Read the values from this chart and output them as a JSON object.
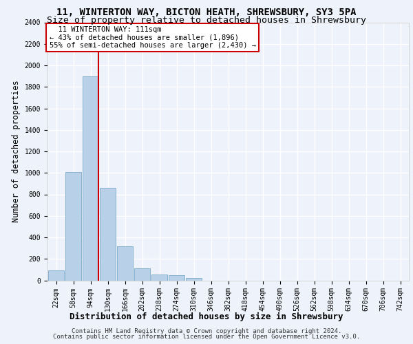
{
  "title": "11, WINTERTON WAY, BICTON HEATH, SHREWSBURY, SY3 5PA",
  "subtitle": "Size of property relative to detached houses in Shrewsbury",
  "xlabel": "Distribution of detached houses by size in Shrewsbury",
  "ylabel": "Number of detached properties",
  "bar_color": "#b8d0e8",
  "bar_edge_color": "#7aaaca",
  "background_color": "#eef2fa",
  "grid_color": "#ffffff",
  "bin_labels": [
    "22sqm",
    "58sqm",
    "94sqm",
    "130sqm",
    "166sqm",
    "202sqm",
    "238sqm",
    "274sqm",
    "310sqm",
    "346sqm",
    "382sqm",
    "418sqm",
    "454sqm",
    "490sqm",
    "526sqm",
    "562sqm",
    "598sqm",
    "634sqm",
    "670sqm",
    "706sqm",
    "742sqm"
  ],
  "bar_values": [
    95,
    1010,
    1900,
    860,
    315,
    115,
    55,
    48,
    25,
    0,
    0,
    0,
    0,
    0,
    0,
    0,
    0,
    0,
    0,
    0,
    0
  ],
  "ylim": [
    0,
    2400
  ],
  "yticks": [
    0,
    200,
    400,
    600,
    800,
    1000,
    1200,
    1400,
    1600,
    1800,
    2000,
    2200,
    2400
  ],
  "vline_x_index": 2,
  "vline_color": "#cc0000",
  "annotation_line1": "  11 WINTERTON WAY: 111sqm",
  "annotation_line2": "← 43% of detached houses are smaller (1,896)",
  "annotation_line3": "55% of semi-detached houses are larger (2,430) →",
  "annotation_box_color": "#ffffff",
  "annotation_box_edge": "#cc0000",
  "footer_line1": "Contains HM Land Registry data © Crown copyright and database right 2024.",
  "footer_line2": "Contains public sector information licensed under the Open Government Licence v3.0.",
  "title_fontsize": 10,
  "subtitle_fontsize": 9.5,
  "xlabel_fontsize": 9,
  "ylabel_fontsize": 8.5,
  "tick_fontsize": 7,
  "annotation_fontsize": 7.5,
  "footer_fontsize": 6.5
}
